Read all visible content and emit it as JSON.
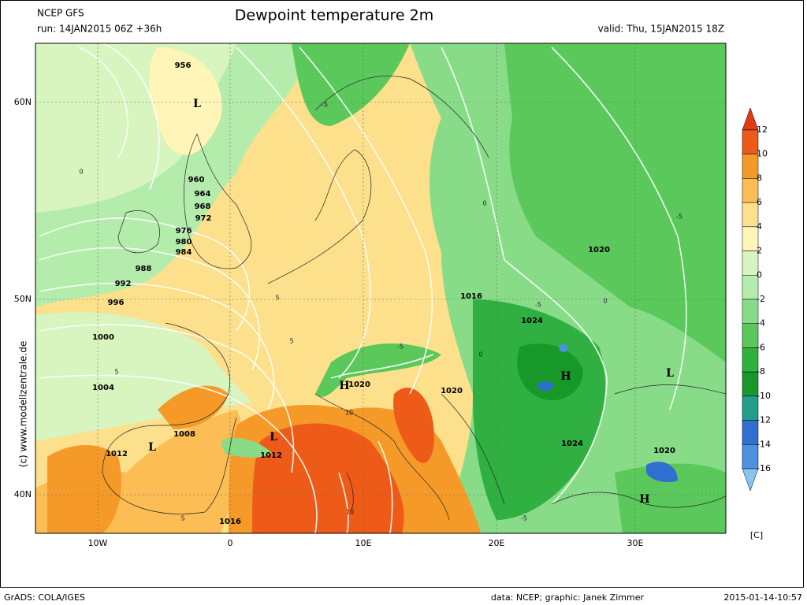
{
  "header": {
    "model": "NCEP GFS",
    "run": "run: 14JAN2015 06Z +36h",
    "title": "Dewpoint temperature 2m",
    "valid": "valid: Thu, 15JAN2015 18Z"
  },
  "credit": "(c) www.modellzentrale.de",
  "axes": {
    "x_labels": [
      "10W",
      "0",
      "10E",
      "20E",
      "30E"
    ],
    "y_labels": [
      "60N",
      "50N",
      "40N"
    ]
  },
  "colorbar": {
    "levels": [
      12,
      10,
      8,
      6,
      4,
      2,
      0,
      -2,
      -4,
      -6,
      -8,
      -10,
      -12,
      -14,
      -16
    ],
    "colors": [
      "#e03c10",
      "#ee5a18",
      "#f59a28",
      "#fbbd54",
      "#fde08c",
      "#fff5b8",
      "#d8f5c0",
      "#b4ecac",
      "#88dc88",
      "#5ac85a",
      "#30b040",
      "#189828",
      "#20a08c",
      "#2f6fd0",
      "#4d8fe0",
      "#88c4f0"
    ],
    "unit": "[C]"
  },
  "pressure_labels": [
    "956",
    "L",
    "960",
    "964",
    "968",
    "972",
    "976",
    "980",
    "984",
    "988",
    "992",
    "996",
    "1000",
    "1004",
    "1008",
    "1012",
    "L",
    "1012",
    "L",
    "1016",
    "H",
    "1020",
    "1020",
    "1016",
    "1024",
    "H",
    "1024",
    "1020",
    "1020",
    "H",
    "L"
  ],
  "contour_labels": [
    "-5",
    "0",
    "0",
    "5",
    "5",
    "5",
    "10",
    "10",
    "-5",
    "-5",
    "0",
    "-5",
    "-5",
    "0",
    "5"
  ],
  "footer": {
    "left": "GrADS: COLA/IGES",
    "center": "data: NCEP; graphic: Janek Zimmer",
    "right": "2015-01-14-10:57"
  }
}
